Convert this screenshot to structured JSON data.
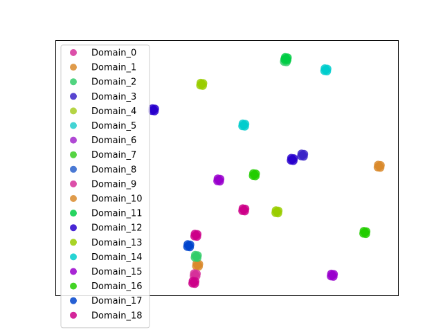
{
  "chart_data": {
    "type": "scatter",
    "title": "",
    "xlabel": "",
    "ylabel": "",
    "axes_visible": false,
    "xlim": [
      0,
      100
    ],
    "ylim": [
      0,
      100
    ],
    "legend": {
      "placement": "upper-left, extending below plot"
    },
    "series": [
      {
        "name": "Domain_0",
        "color": "#d6309a",
        "points": []
      },
      {
        "name": "Domain_1",
        "color": "#d98a2c",
        "points": [
          [
            41.4,
            11.9
          ]
        ]
      },
      {
        "name": "Domain_2",
        "color": "#32cc6a",
        "points": [
          [
            41.0,
            15.3
          ],
          [
            67.1,
            92.2
          ]
        ]
      },
      {
        "name": "Domain_3",
        "color": "#3b25c8",
        "points": [
          [
            72.1,
            55.1
          ]
        ]
      },
      {
        "name": "Domain_4",
        "color": "#a8cc24",
        "points": []
      },
      {
        "name": "Domain_5",
        "color": "#22cccc",
        "points": []
      },
      {
        "name": "Domain_6",
        "color": "#a229cc",
        "points": []
      },
      {
        "name": "Domain_7",
        "color": "#38cc22",
        "points": []
      },
      {
        "name": "Domain_8",
        "color": "#2a62cc",
        "points": []
      },
      {
        "name": "Domain_9",
        "color": "#d6309a",
        "points": [
          [
            40.7,
            8.1
          ]
        ]
      },
      {
        "name": "Domain_10",
        "color": "#d98a2c",
        "points": [
          [
            94.5,
            50.7
          ]
        ]
      },
      {
        "name": "Domain_11",
        "color": "#00cc44",
        "points": [
          [
            67.3,
            93.0
          ]
        ]
      },
      {
        "name": "Domain_12",
        "color": "#2800cc",
        "points": [
          [
            28.5,
            72.9
          ],
          [
            69.1,
            53.4
          ]
        ]
      },
      {
        "name": "Domain_13",
        "color": "#99cc00",
        "points": [
          [
            42.6,
            82.9
          ],
          [
            64.6,
            32.8
          ]
        ]
      },
      {
        "name": "Domain_14",
        "color": "#00cccc",
        "points": [
          [
            78.9,
            88.6
          ],
          [
            54.9,
            66.9
          ]
        ]
      },
      {
        "name": "Domain_15",
        "color": "#9900cc",
        "points": [
          [
            47.6,
            45.3
          ],
          [
            80.8,
            7.9
          ]
        ]
      },
      {
        "name": "Domain_16",
        "color": "#22cc00",
        "points": [
          [
            58.0,
            47.4
          ],
          [
            90.3,
            24.7
          ]
        ]
      },
      {
        "name": "Domain_17",
        "color": "#0044cc",
        "points": [
          [
            38.8,
            19.5
          ]
        ]
      },
      {
        "name": "Domain_18",
        "color": "#cc0088",
        "points": [
          [
            54.9,
            33.6
          ],
          [
            40.9,
            23.6
          ],
          [
            40.3,
            5.1
          ]
        ]
      }
    ]
  }
}
